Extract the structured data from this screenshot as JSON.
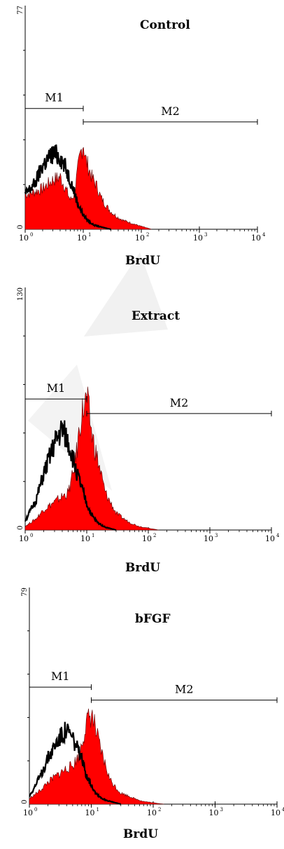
{
  "chart_data": [
    {
      "type": "area",
      "title": "Control",
      "xlabel": "BrdU",
      "xscale": "log",
      "xlim": [
        1,
        10000
      ],
      "xticks": [
        "10",
        "10",
        "10",
        "10",
        "10"
      ],
      "xtick_exponents": [
        "0",
        "1",
        "2",
        "3",
        "4"
      ],
      "ylim": [
        0,
        77
      ],
      "ytick_labels": [
        "0",
        "77"
      ],
      "markers": [
        {
          "name": "M1",
          "from": 1,
          "to": 10
        },
        {
          "name": "M2",
          "from": 10,
          "to": 10000
        }
      ],
      "series": [
        {
          "style": "filled",
          "color": "#ff0000",
          "x": [
            1,
            1.5,
            2,
            3,
            4,
            5,
            6,
            7,
            8,
            9,
            10,
            11,
            12,
            14,
            17,
            20,
            25,
            30,
            40,
            50,
            70,
            100,
            150
          ],
          "y": [
            12,
            13,
            14,
            17,
            18,
            14,
            10,
            12,
            20,
            26,
            30,
            24,
            22,
            18,
            15,
            11,
            8,
            6,
            4,
            3,
            2,
            1,
            0
          ]
        },
        {
          "style": "line",
          "color": "#000000",
          "x": [
            1,
            1.5,
            2,
            3,
            4,
            5,
            6,
            7,
            8,
            10,
            12,
            15,
            20,
            30
          ],
          "y": [
            12,
            16,
            22,
            26,
            25,
            21,
            17,
            13,
            9,
            5,
            3,
            1.5,
            0.8,
            0
          ]
        }
      ]
    },
    {
      "type": "area",
      "title": "Extract",
      "xlabel": "BrdU",
      "xscale": "log",
      "xlim": [
        1,
        10000
      ],
      "xticks": [
        "10",
        "10",
        "10",
        "10",
        "10"
      ],
      "xtick_exponents": [
        "0",
        "1",
        "2",
        "3",
        "4"
      ],
      "ylim": [
        0,
        130
      ],
      "ytick_labels": [
        "0",
        "130"
      ],
      "markers": [
        {
          "name": "M1",
          "from": 1,
          "to": 10
        },
        {
          "name": "M2",
          "from": 10,
          "to": 10000
        }
      ],
      "series": [
        {
          "style": "filled",
          "color": "#ff0000",
          "x": [
            1,
            1.5,
            2,
            3,
            4,
            5,
            6,
            7,
            8,
            9,
            10,
            11,
            12,
            14,
            17,
            20,
            25,
            30,
            40,
            50,
            70,
            100,
            150
          ],
          "y": [
            2,
            6,
            11,
            15,
            18,
            20,
            30,
            44,
            60,
            66,
            70,
            62,
            52,
            42,
            30,
            20,
            14,
            9,
            6,
            4,
            2,
            1,
            0
          ]
        },
        {
          "style": "line",
          "color": "#000000",
          "x": [
            1,
            1.5,
            2,
            3,
            4,
            5,
            6,
            7,
            8,
            10,
            12,
            15,
            20,
            30
          ],
          "y": [
            5,
            16,
            30,
            46,
            54,
            47,
            38,
            30,
            24,
            14,
            8,
            4,
            1.5,
            0
          ]
        }
      ]
    },
    {
      "type": "area",
      "title": "bFGF",
      "xlabel": "BrdU",
      "xscale": "log",
      "xlim": [
        1,
        10000
      ],
      "xticks": [
        "10",
        "10",
        "10",
        "10",
        "10"
      ],
      "xtick_exponents": [
        "0",
        "1",
        "2",
        "3",
        "4"
      ],
      "ylim": [
        0,
        79
      ],
      "ytick_labels": [
        "0",
        "79"
      ],
      "markers": [
        {
          "name": "M1",
          "from": 1,
          "to": 10
        },
        {
          "name": "M2",
          "from": 10,
          "to": 10000
        }
      ],
      "series": [
        {
          "style": "filled",
          "color": "#ff0000",
          "x": [
            1,
            1.5,
            2,
            3,
            4,
            5,
            6,
            7,
            8,
            9,
            10,
            11,
            12,
            14,
            17,
            20,
            25,
            30,
            40,
            50,
            70,
            100,
            150
          ],
          "y": [
            2,
            5,
            8,
            11,
            13,
            14,
            17,
            22,
            28,
            31,
            33,
            30,
            26,
            20,
            14,
            9,
            6,
            4,
            3,
            2,
            1,
            0.5,
            0
          ]
        },
        {
          "style": "line",
          "color": "#000000",
          "x": [
            1,
            1.5,
            2,
            3,
            4,
            5,
            6,
            7,
            8,
            10,
            12,
            15,
            20,
            30
          ],
          "y": [
            3,
            10,
            17,
            24,
            27,
            24,
            20,
            16,
            12,
            7,
            4,
            2,
            1,
            0
          ]
        }
      ]
    }
  ]
}
